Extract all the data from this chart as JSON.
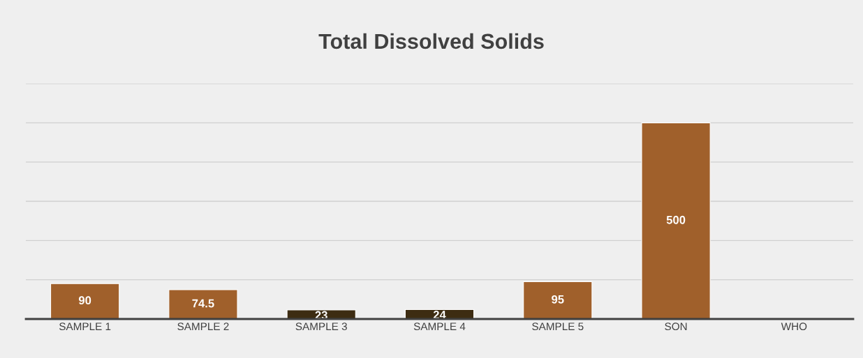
{
  "chart_data": {
    "type": "bar",
    "title": "Total Dissolved Solids",
    "categories": [
      "SAMPLE 1",
      "SAMPLE 2",
      "SAMPLE 3",
      "SAMPLE 4",
      "SAMPLE 5",
      "SON",
      "WHO"
    ],
    "values": [
      90,
      74.5,
      23,
      24,
      95,
      500,
      null
    ],
    "colors": [
      "#a0602b",
      "#a0602b",
      "#3d2c12",
      "#3d2c12",
      "#a0602b",
      "#a0602b",
      "#a0602b"
    ],
    "ylim": [
      0,
      600
    ],
    "yticks": [
      {
        "value": 0,
        "label": null
      },
      {
        "value": 100,
        "label": null
      },
      {
        "value": 200,
        "label": null
      },
      {
        "value": 300,
        "label": null
      },
      {
        "value": 400,
        "label": null
      },
      {
        "value": 500,
        "label": null
      },
      {
        "value": 600,
        "label": null
      }
    ],
    "grid": "y",
    "tick_labels": "x",
    "data_labels": true
  }
}
